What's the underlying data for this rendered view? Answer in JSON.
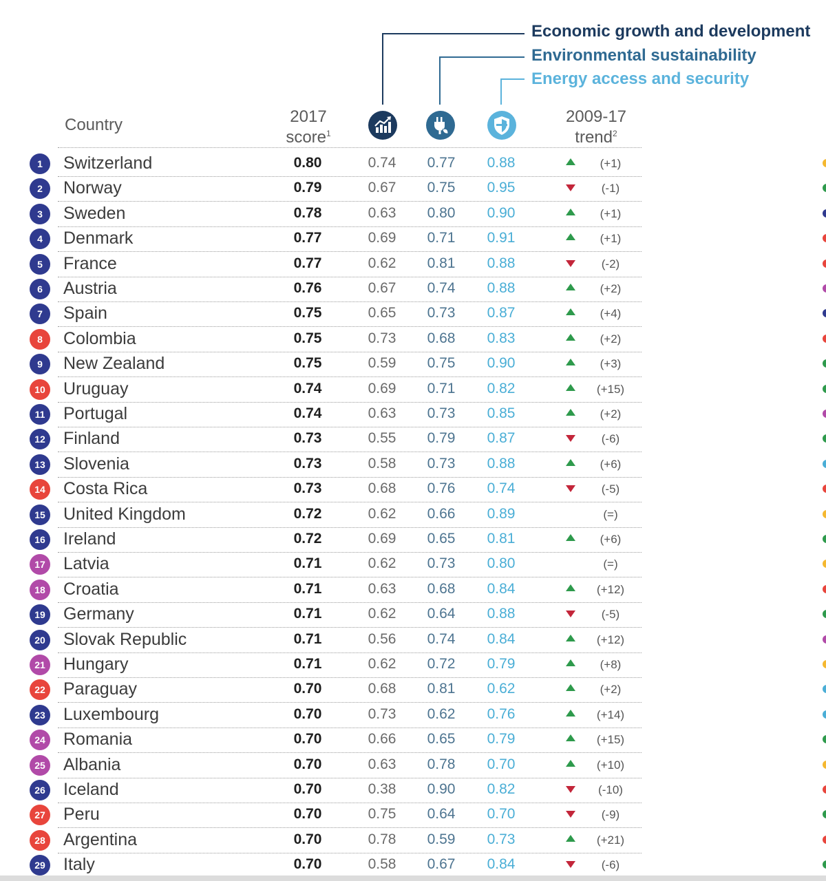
{
  "legend": {
    "economic": {
      "label": "Economic growth and development",
      "color": "#1c3a5e"
    },
    "environmental": {
      "label": "Environmental sustainability",
      "color": "#2f6a92"
    },
    "energy": {
      "label": "Energy access and security",
      "color": "#5bb3dc"
    }
  },
  "header": {
    "country": "Country",
    "score_year": "2017",
    "score_word": "score",
    "score_note": "1",
    "trend_years": "2009-17",
    "trend_word": "trend",
    "trend_note": "2"
  },
  "icons": {
    "economic": "growth-chart-icon",
    "environmental": "leaf-plug-icon",
    "energy": "shield-icon"
  },
  "region_colors": {
    "navy": "#2f3a8f",
    "red": "#e8453c",
    "magenta": "#b14aa8",
    "up": "#2e9a4c",
    "down": "#c3263a"
  },
  "rows": [
    {
      "rank": "1",
      "country": "Switzerland",
      "score": "0.80",
      "econ": "0.74",
      "env": "0.77",
      "energy": "0.88",
      "trend": "up",
      "change": "(+1)",
      "region": "navy",
      "edge": "#f5b830"
    },
    {
      "rank": "2",
      "country": "Norway",
      "score": "0.79",
      "econ": "0.67",
      "env": "0.75",
      "energy": "0.95",
      "trend": "down",
      "change": "(-1)",
      "region": "navy",
      "edge": "#2e9a4c"
    },
    {
      "rank": "3",
      "country": "Sweden",
      "score": "0.78",
      "econ": "0.63",
      "env": "0.80",
      "energy": "0.90",
      "trend": "up",
      "change": "(+1)",
      "region": "navy",
      "edge": "#2f3a8f"
    },
    {
      "rank": "4",
      "country": "Denmark",
      "score": "0.77",
      "econ": "0.69",
      "env": "0.71",
      "energy": "0.91",
      "trend": "up",
      "change": "(+1)",
      "region": "navy",
      "edge": "#e8453c"
    },
    {
      "rank": "5",
      "country": "France",
      "score": "0.77",
      "econ": "0.62",
      "env": "0.81",
      "energy": "0.88",
      "trend": "down",
      "change": "(-2)",
      "region": "navy",
      "edge": "#e8453c"
    },
    {
      "rank": "6",
      "country": "Austria",
      "score": "0.76",
      "econ": "0.67",
      "env": "0.74",
      "energy": "0.88",
      "trend": "up",
      "change": "(+2)",
      "region": "navy",
      "edge": "#b14aa8"
    },
    {
      "rank": "7",
      "country": "Spain",
      "score": "0.75",
      "econ": "0.65",
      "env": "0.73",
      "energy": "0.87",
      "trend": "up",
      "change": "(+4)",
      "region": "navy",
      "edge": "#2f3a8f"
    },
    {
      "rank": "8",
      "country": "Colombia",
      "score": "0.75",
      "econ": "0.73",
      "env": "0.68",
      "energy": "0.83",
      "trend": "up",
      "change": "(+2)",
      "region": "red",
      "edge": "#e8453c"
    },
    {
      "rank": "9",
      "country": "New Zealand",
      "score": "0.75",
      "econ": "0.59",
      "env": "0.75",
      "energy": "0.90",
      "trend": "up",
      "change": "(+3)",
      "region": "navy",
      "edge": "#2e9a4c"
    },
    {
      "rank": "10",
      "country": "Uruguay",
      "score": "0.74",
      "econ": "0.69",
      "env": "0.71",
      "energy": "0.82",
      "trend": "up",
      "change": "(+15)",
      "region": "red",
      "edge": "#2e9a4c"
    },
    {
      "rank": "11",
      "country": "Portugal",
      "score": "0.74",
      "econ": "0.63",
      "env": "0.73",
      "energy": "0.85",
      "trend": "up",
      "change": "(+2)",
      "region": "navy",
      "edge": "#b14aa8"
    },
    {
      "rank": "12",
      "country": "Finland",
      "score": "0.73",
      "econ": "0.55",
      "env": "0.79",
      "energy": "0.87",
      "trend": "down",
      "change": "(-6)",
      "region": "navy",
      "edge": "#2e9a4c"
    },
    {
      "rank": "13",
      "country": "Slovenia",
      "score": "0.73",
      "econ": "0.58",
      "env": "0.73",
      "energy": "0.88",
      "trend": "up",
      "change": "(+6)",
      "region": "navy",
      "edge": "#4aaed6"
    },
    {
      "rank": "14",
      "country": "Costa Rica",
      "score": "0.73",
      "econ": "0.68",
      "env": "0.76",
      "energy": "0.74",
      "trend": "down",
      "change": "(-5)",
      "region": "red",
      "edge": "#e8453c"
    },
    {
      "rank": "15",
      "country": "United Kingdom",
      "score": "0.72",
      "econ": "0.62",
      "env": "0.66",
      "energy": "0.89",
      "trend": "none",
      "change": "(=)",
      "region": "navy",
      "edge": "#f5b830"
    },
    {
      "rank": "16",
      "country": "Ireland",
      "score": "0.72",
      "econ": "0.69",
      "env": "0.65",
      "energy": "0.81",
      "trend": "up",
      "change": "(+6)",
      "region": "navy",
      "edge": "#2e9a4c"
    },
    {
      "rank": "17",
      "country": "Latvia",
      "score": "0.71",
      "econ": "0.62",
      "env": "0.73",
      "energy": "0.80",
      "trend": "none",
      "change": "(=)",
      "region": "magenta",
      "edge": "#f5b830"
    },
    {
      "rank": "18",
      "country": "Croatia",
      "score": "0.71",
      "econ": "0.63",
      "env": "0.68",
      "energy": "0.84",
      "trend": "up",
      "change": "(+12)",
      "region": "magenta",
      "edge": "#e8453c"
    },
    {
      "rank": "19",
      "country": "Germany",
      "score": "0.71",
      "econ": "0.62",
      "env": "0.64",
      "energy": "0.88",
      "trend": "down",
      "change": "(-5)",
      "region": "navy",
      "edge": "#2e9a4c"
    },
    {
      "rank": "20",
      "country": "Slovak Republic",
      "score": "0.71",
      "econ": "0.56",
      "env": "0.74",
      "energy": "0.84",
      "trend": "up",
      "change": "(+12)",
      "region": "navy",
      "edge": "#b14aa8"
    },
    {
      "rank": "21",
      "country": "Hungary",
      "score": "0.71",
      "econ": "0.62",
      "env": "0.72",
      "energy": "0.79",
      "trend": "up",
      "change": "(+8)",
      "region": "magenta",
      "edge": "#f5b830"
    },
    {
      "rank": "22",
      "country": "Paraguay",
      "score": "0.70",
      "econ": "0.68",
      "env": "0.81",
      "energy": "0.62",
      "trend": "up",
      "change": "(+2)",
      "region": "red",
      "edge": "#4aaed6"
    },
    {
      "rank": "23",
      "country": "Luxembourg",
      "score": "0.70",
      "econ": "0.73",
      "env": "0.62",
      "energy": "0.76",
      "trend": "up",
      "change": "(+14)",
      "region": "navy",
      "edge": "#4aaed6"
    },
    {
      "rank": "24",
      "country": "Romania",
      "score": "0.70",
      "econ": "0.66",
      "env": "0.65",
      "energy": "0.79",
      "trend": "up",
      "change": "(+15)",
      "region": "magenta",
      "edge": "#2e9a4c"
    },
    {
      "rank": "25",
      "country": "Albania",
      "score": "0.70",
      "econ": "0.63",
      "env": "0.78",
      "energy": "0.70",
      "trend": "up",
      "change": "(+10)",
      "region": "magenta",
      "edge": "#f5b830"
    },
    {
      "rank": "26",
      "country": "Iceland",
      "score": "0.70",
      "econ": "0.38",
      "env": "0.90",
      "energy": "0.82",
      "trend": "down",
      "change": "(-10)",
      "region": "navy",
      "edge": "#e8453c"
    },
    {
      "rank": "27",
      "country": "Peru",
      "score": "0.70",
      "econ": "0.75",
      "env": "0.64",
      "energy": "0.70",
      "trend": "down",
      "change": "(-9)",
      "region": "red",
      "edge": "#2e9a4c"
    },
    {
      "rank": "28",
      "country": "Argentina",
      "score": "0.70",
      "econ": "0.78",
      "env": "0.59",
      "energy": "0.73",
      "trend": "up",
      "change": "(+21)",
      "region": "red",
      "edge": "#e8453c"
    },
    {
      "rank": "29",
      "country": "Italy",
      "score": "0.70",
      "econ": "0.58",
      "env": "0.67",
      "energy": "0.84",
      "trend": "down",
      "change": "(-6)",
      "region": "navy",
      "edge": "#2e9a4c"
    }
  ]
}
